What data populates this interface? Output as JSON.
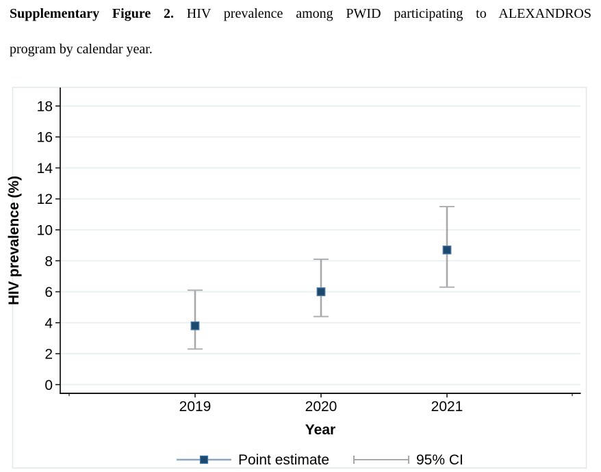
{
  "caption": {
    "bold_label": "Supplementary Figure 2.",
    "line1_rest": " HIV prevalence among PWID participating to ALEXANDROS",
    "line2": "program by calendar year."
  },
  "colors": {
    "marker_fill": "#1c4a6e",
    "marker_border": "#4878a8",
    "ci_line": "#a9a9a9",
    "ci_cap": "#b0b0b0",
    "legend_line": "#8aa5bf",
    "grid_line": "#e7f0f2",
    "axis_line": "#1a1a1a",
    "graph_border": "#dfe7e9",
    "text": "#000000"
  },
  "chart_data": {
    "type": "scatter",
    "title": "",
    "xlabel": "Year",
    "ylabel": "HIV prevalence (%)",
    "categories": [
      "2019",
      "2020",
      "2021"
    ],
    "series": [
      {
        "name": "Point estimate",
        "values": [
          3.8,
          6.0,
          8.7
        ]
      },
      {
        "name": "95% CI lower",
        "values": [
          2.3,
          4.4,
          6.3
        ]
      },
      {
        "name": "95% CI upper",
        "values": [
          6.1,
          8.1,
          11.5
        ]
      }
    ],
    "ylim": [
      0,
      19.2
    ],
    "yticks": [
      0,
      2,
      4,
      6,
      8,
      10,
      12,
      14,
      16,
      18
    ],
    "grid": true,
    "legend_position": "bottom",
    "legend": [
      {
        "label": "Point estimate",
        "glyph": "line-with-square-marker"
      },
      {
        "label": "95% CI",
        "glyph": "error-bar"
      }
    ]
  }
}
